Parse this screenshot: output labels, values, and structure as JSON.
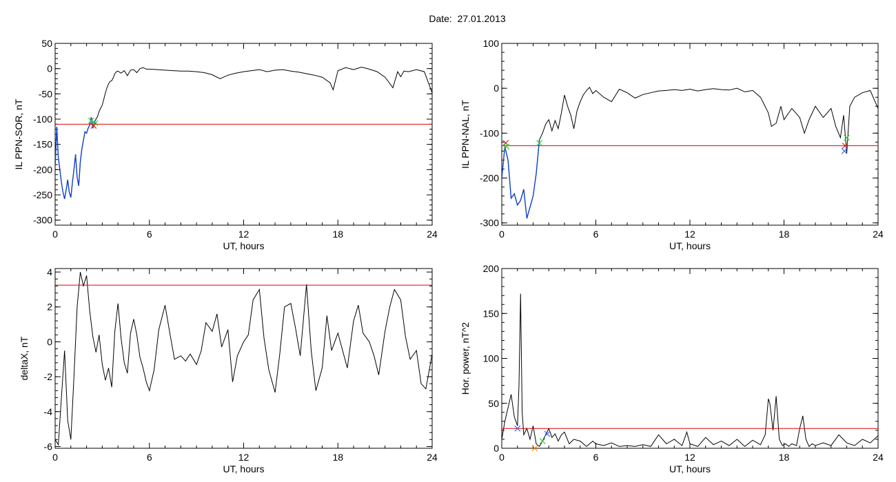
{
  "date_label": "Date:",
  "date_value": "27.01.2013",
  "colors": {
    "trace": "#000000",
    "threshold": "#e00000",
    "selected": "#1144cc",
    "marker_green": "#33cc33",
    "marker_red": "#cc2222",
    "marker_blue": "#3366ff",
    "marker_orange": "#ff8800"
  },
  "chart_data": [
    {
      "id": "il-sor",
      "type": "line",
      "ylabel": "IL PPN-SOR, nT",
      "xlabel": "UT, hours",
      "xlim": [
        0,
        24
      ],
      "ylim": [
        -310,
        50
      ],
      "xticks": [
        0,
        6,
        12,
        18,
        24
      ],
      "yticks": [
        50,
        0,
        -50,
        -100,
        -150,
        -200,
        -250,
        -300
      ],
      "threshold": -110,
      "highlight_range": [
        0,
        2.6
      ],
      "markers": [
        {
          "x": 2.3,
          "y": -103,
          "color": "green"
        },
        {
          "x": 2.55,
          "y": -108,
          "color": "green"
        },
        {
          "x": 2.45,
          "y": -113,
          "color": "red"
        }
      ],
      "series": [
        {
          "x": [
            0,
            0.1,
            0.2,
            0.3,
            0.4,
            0.5,
            0.6,
            0.7,
            0.8,
            0.9,
            1.0,
            1.1,
            1.2,
            1.3,
            1.4,
            1.5,
            1.6,
            1.7,
            1.8,
            1.9,
            2.0,
            2.1,
            2.2,
            2.3,
            2.4,
            2.5,
            2.6,
            2.7,
            2.8,
            2.9,
            3.0,
            3.1,
            3.2,
            3.3,
            3.4,
            3.5,
            3.6,
            3.7,
            3.8,
            3.9,
            4.0,
            4.2,
            4.4,
            4.6,
            4.8,
            5.0,
            5.2,
            5.4,
            5.6,
            5.8,
            6.0,
            6.5,
            7.0,
            7.5,
            8.0,
            8.5,
            9.0,
            9.5,
            10.0,
            10.5,
            11.0,
            11.5,
            12.0,
            12.5,
            13.0,
            13.5,
            14.0,
            14.5,
            15.0,
            15.5,
            16.0,
            16.5,
            17.0,
            17.5,
            17.7,
            18.0,
            18.5,
            19.0,
            19.5,
            20.0,
            20.5,
            21.0,
            21.2,
            21.5,
            21.8,
            22.0,
            22.2,
            22.5,
            23.0,
            23.5,
            24.0
          ],
          "y": [
            -195,
            -115,
            -175,
            -200,
            -225,
            -245,
            -258,
            -240,
            -220,
            -245,
            -255,
            -225,
            -200,
            -170,
            -215,
            -232,
            -185,
            -160,
            -142,
            -125,
            -128,
            -118,
            -112,
            -96,
            -118,
            -106,
            -100,
            -95,
            -85,
            -78,
            -72,
            -60,
            -48,
            -38,
            -30,
            -25,
            -24,
            -18,
            -10,
            -6,
            -5,
            -9,
            -4,
            -14,
            -3,
            -2,
            -8,
            0,
            2,
            -1,
            -1,
            -2,
            -3,
            -4,
            -5,
            -5,
            -6,
            -8,
            -12,
            -20,
            -13,
            -9,
            -6,
            -4,
            -2,
            -6,
            -3,
            -2,
            -5,
            -7,
            -10,
            -13,
            -17,
            -28,
            -42,
            -4,
            2,
            -2,
            3,
            -1,
            -6,
            -17,
            -25,
            -38,
            -6,
            -16,
            -5,
            -6,
            -2,
            -6,
            -48
          ]
        }
      ]
    },
    {
      "id": "il-nal",
      "type": "line",
      "ylabel": "IL PPN-NAL, nT",
      "xlabel": "UT, hours",
      "xlim": [
        0,
        24
      ],
      "ylim": [
        -305,
        100
      ],
      "xticks": [
        0,
        6,
        12,
        18,
        24
      ],
      "yticks": [
        100,
        0,
        -100,
        -200,
        -300
      ],
      "threshold": -128,
      "highlight_range": [
        0,
        2.5
      ],
      "markers": [
        {
          "x": 0.25,
          "y": -122,
          "color": "red"
        },
        {
          "x": 0.3,
          "y": -130,
          "color": "green"
        },
        {
          "x": 2.4,
          "y": -122,
          "color": "green"
        },
        {
          "x": 22.0,
          "y": -110,
          "color": "green"
        },
        {
          "x": 21.9,
          "y": -128,
          "color": "red"
        },
        {
          "x": 21.85,
          "y": -140,
          "color": "blue"
        }
      ],
      "series": [
        {
          "x": [
            0,
            0.2,
            0.4,
            0.6,
            0.8,
            1.0,
            1.2,
            1.4,
            1.6,
            1.8,
            2.0,
            2.2,
            2.4,
            2.6,
            2.8,
            3.0,
            3.2,
            3.4,
            3.6,
            3.8,
            4.0,
            4.2,
            4.4,
            4.6,
            4.8,
            5.0,
            5.2,
            5.4,
            5.6,
            5.8,
            6.0,
            6.5,
            7.0,
            7.5,
            8.0,
            8.5,
            9.0,
            9.5,
            10.0,
            10.5,
            11.0,
            11.5,
            12.0,
            12.5,
            13.0,
            13.5,
            14.0,
            14.5,
            15.0,
            15.5,
            16.0,
            16.5,
            17.0,
            17.2,
            17.5,
            17.8,
            18.0,
            18.5,
            19.0,
            19.3,
            19.6,
            20.0,
            20.5,
            21.0,
            21.3,
            21.6,
            21.8,
            22.0,
            22.2,
            22.5,
            23.0,
            23.5,
            24.0
          ],
          "y": [
            -200,
            -130,
            -160,
            -245,
            -235,
            -260,
            -250,
            -225,
            -290,
            -265,
            -240,
            -190,
            -115,
            -100,
            -80,
            -70,
            -95,
            -72,
            -90,
            -55,
            -15,
            -40,
            -60,
            -90,
            -50,
            -30,
            -15,
            -5,
            2,
            -12,
            -5,
            -20,
            -30,
            -2,
            -10,
            -22,
            -14,
            -10,
            -6,
            -5,
            -3,
            -5,
            -2,
            -6,
            -3,
            -1,
            -3,
            -4,
            0,
            -8,
            -5,
            -20,
            -55,
            -85,
            -78,
            -40,
            -70,
            -45,
            -65,
            -100,
            -70,
            -40,
            -65,
            -45,
            -85,
            -110,
            -60,
            -145,
            -40,
            -20,
            -10,
            -5,
            -45
          ]
        }
      ]
    },
    {
      "id": "deltax",
      "type": "line",
      "ylabel": "deltaX, nT",
      "xlabel": "UT, hours",
      "xlim": [
        0,
        24
      ],
      "ylim": [
        -6.1,
        4.2
      ],
      "xticks": [
        0,
        6,
        12,
        18,
        24
      ],
      "yticks": [
        4,
        2,
        0,
        -2,
        -4,
        -6
      ],
      "threshold": 3.25,
      "highlight_range": null,
      "markers": [],
      "series": [
        {
          "x": [
            0,
            0.2,
            0.4,
            0.6,
            0.8,
            1.0,
            1.2,
            1.4,
            1.6,
            1.8,
            2.0,
            2.2,
            2.4,
            2.6,
            2.8,
            3.0,
            3.2,
            3.4,
            3.6,
            3.8,
            4.0,
            4.2,
            4.4,
            4.6,
            4.8,
            5.0,
            5.2,
            5.4,
            5.6,
            5.8,
            6.0,
            6.3,
            6.6,
            7.0,
            7.3,
            7.6,
            8.0,
            8.3,
            8.6,
            9.0,
            9.3,
            9.6,
            10.0,
            10.3,
            10.6,
            11.0,
            11.3,
            11.6,
            12.0,
            12.3,
            12.6,
            13.0,
            13.3,
            13.6,
            14.0,
            14.3,
            14.6,
            15.0,
            15.3,
            15.6,
            16.0,
            16.3,
            16.6,
            17.0,
            17.3,
            17.6,
            18.0,
            18.3,
            18.6,
            19.0,
            19.3,
            19.6,
            20.0,
            20.3,
            20.6,
            21.0,
            21.3,
            21.6,
            22.0,
            22.3,
            22.6,
            23.0,
            23.3,
            23.6,
            24.0
          ],
          "y": [
            -5.6,
            -5.9,
            -3.2,
            -0.5,
            -4.5,
            -5.6,
            -2.0,
            2.0,
            4.0,
            3.2,
            3.8,
            1.8,
            0.3,
            -0.6,
            0.4,
            -1.3,
            -2.2,
            -1.5,
            -2.6,
            0.6,
            2.2,
            0.2,
            -1.2,
            -1.8,
            0.5,
            1.3,
            0.4,
            -0.9,
            -1.5,
            -2.3,
            -2.8,
            -1.6,
            0.7,
            2.1,
            0.5,
            -1.0,
            -0.8,
            -1.1,
            -0.7,
            -1.3,
            -0.5,
            1.1,
            0.6,
            1.6,
            -0.3,
            0.7,
            -2.3,
            -0.8,
            0.0,
            0.4,
            2.4,
            3.0,
            0.2,
            -1.6,
            -2.9,
            -0.7,
            2.0,
            2.2,
            0.8,
            -0.8,
            3.3,
            -0.5,
            -2.8,
            -1.5,
            1.5,
            -0.5,
            0.5,
            -0.5,
            -1.5,
            1.2,
            2.1,
            0.5,
            0.0,
            -0.8,
            -1.9,
            0.6,
            2.0,
            3.0,
            2.4,
            0.3,
            -1.0,
            -0.5,
            -2.4,
            -2.7,
            -0.7
          ]
        }
      ]
    },
    {
      "id": "hor-power",
      "type": "line",
      "ylabel": "Hor. power, nT^2",
      "xlabel": "UT, hours",
      "xlim": [
        0,
        24
      ],
      "ylim": [
        0,
        200
      ],
      "xticks": [
        0,
        6,
        12,
        18,
        24
      ],
      "yticks": [
        200,
        150,
        100,
        50,
        0
      ],
      "threshold": 22,
      "highlight_range": null,
      "markers": [
        {
          "x": 1.0,
          "y": 22,
          "color": "blue"
        },
        {
          "x": 2.1,
          "y": 0,
          "color": "orange"
        },
        {
          "x": 2.6,
          "y": 8,
          "color": "green"
        },
        {
          "x": 2.9,
          "y": 16,
          "color": "blue"
        }
      ],
      "series": [
        {
          "x": [
            0,
            0.2,
            0.4,
            0.6,
            0.8,
            1.0,
            1.1,
            1.2,
            1.3,
            1.4,
            1.6,
            1.8,
            2.0,
            2.2,
            2.4,
            2.6,
            2.8,
            3.0,
            3.2,
            3.4,
            3.6,
            3.8,
            4.0,
            4.3,
            4.6,
            5.0,
            5.4,
            5.8,
            6.0,
            6.5,
            7.0,
            7.5,
            8.0,
            8.5,
            9.0,
            9.5,
            10.0,
            10.5,
            11.0,
            11.5,
            11.8,
            12.0,
            12.5,
            13.0,
            13.5,
            14.0,
            14.5,
            15.0,
            15.5,
            16.0,
            16.5,
            16.8,
            17.0,
            17.1,
            17.3,
            17.5,
            17.7,
            17.9,
            18.1,
            18.3,
            18.5,
            18.8,
            19.0,
            19.2,
            19.4,
            19.6,
            19.8,
            20.0,
            20.5,
            21.0,
            21.5,
            22.0,
            22.5,
            23.0,
            23.5,
            24.0
          ],
          "y": [
            10,
            30,
            45,
            60,
            35,
            25,
            70,
            172,
            40,
            15,
            22,
            10,
            25,
            5,
            2,
            8,
            15,
            22,
            12,
            16,
            8,
            15,
            18,
            5,
            10,
            8,
            2,
            8,
            5,
            3,
            6,
            2,
            3,
            2,
            4,
            2,
            15,
            5,
            10,
            3,
            18,
            5,
            2,
            12,
            4,
            8,
            3,
            10,
            2,
            9,
            4,
            15,
            55,
            50,
            20,
            58,
            10,
            3,
            5,
            2,
            5,
            3,
            22,
            36,
            10,
            2,
            5,
            3,
            6,
            3,
            15,
            6,
            3,
            10,
            6,
            14
          ]
        }
      ]
    }
  ]
}
